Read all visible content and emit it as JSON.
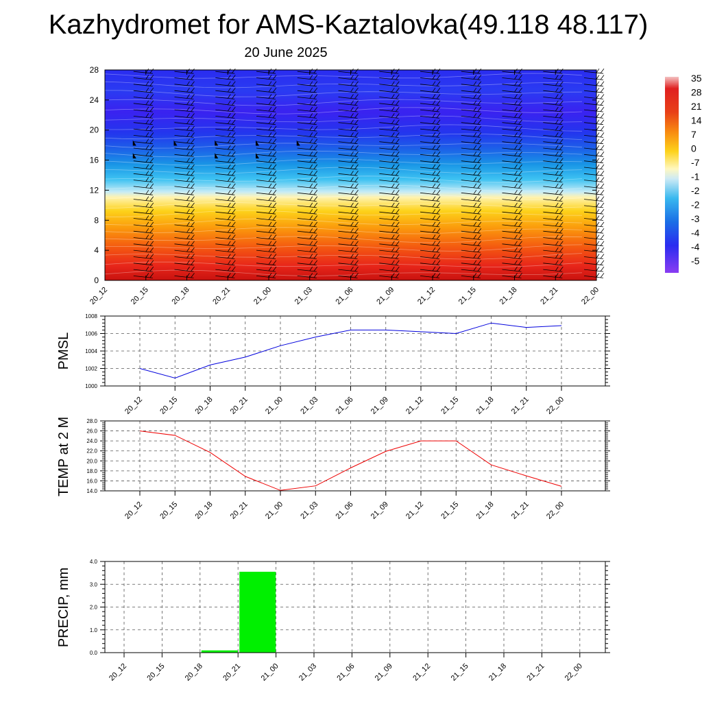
{
  "title": "Kazhydromet for AMS-Kaztalovka(49.118 48.117)",
  "subtitle": "20 June 2025",
  "chart_data": [
    {
      "type": "heatmap",
      "description_of_fill": "temperature cross-section with wind barbs",
      "x_tick_labels": [
        "20_12",
        "20_15",
        "20_18",
        "20_21",
        "21_00",
        "21_03",
        "21_06",
        "21_09",
        "21_12",
        "21_15",
        "21_18",
        "21_21",
        "22_00"
      ],
      "y_tick_labels": [
        "0",
        "4",
        "8",
        "12",
        "16",
        "20",
        "24",
        "28"
      ],
      "ylim": [
        0,
        28
      ],
      "colorbar_labels": [
        "35",
        "28",
        "21",
        "14",
        "7",
        "0",
        "-7",
        "-1",
        "-2",
        "-2",
        "-3",
        "-4",
        "-4",
        "-5"
      ]
    },
    {
      "type": "line",
      "ylabel": "PMSL",
      "x_tick_labels": [
        "20_12",
        "20_15",
        "20_18",
        "20_21",
        "21_00",
        "21_03",
        "21_06",
        "21_09",
        "21_12",
        "21_15",
        "21_18",
        "21_21",
        "22_00"
      ],
      "y_tick_labels": [
        "1000",
        "1002",
        "1004",
        "1006",
        "1008"
      ],
      "ylim": [
        1000,
        1008
      ],
      "series": [
        {
          "color": "#0000dd",
          "values": [
            1002.0,
            1000.9,
            1002.4,
            1003.3,
            1004.6,
            1005.6,
            1006.4,
            1006.4,
            1006.2,
            1006.0,
            1007.2,
            1006.7,
            1006.9
          ]
        }
      ],
      "grid": "dashed"
    },
    {
      "type": "line",
      "ylabel": "TEMP at 2 M",
      "x_tick_labels": [
        "20_12",
        "20_15",
        "20_18",
        "20_21",
        "21_00",
        "21_03",
        "21_06",
        "21_09",
        "21_12",
        "21_15",
        "21_18",
        "21_21",
        "22_00"
      ],
      "y_tick_labels": [
        "14.0",
        "16.0",
        "18.0",
        "20.0",
        "22.0",
        "24.0",
        "26.0",
        "28.0"
      ],
      "ylim": [
        14,
        28
      ],
      "series": [
        {
          "color": "#ee0000",
          "values": [
            26.0,
            25.1,
            21.7,
            16.9,
            14.1,
            15.0,
            18.6,
            21.9,
            24.0,
            24.0,
            19.2,
            17.0,
            14.9
          ]
        }
      ],
      "grid": "dashed"
    },
    {
      "type": "bar",
      "ylabel": "PRECIP, mm",
      "x_tick_labels": [
        "20_12",
        "20_15",
        "20_18",
        "20_21",
        "21_00",
        "21_03",
        "21_06",
        "21_09",
        "21_12",
        "21_15",
        "21_18",
        "21_21",
        "22_00"
      ],
      "y_tick_labels": [
        "0.0",
        "1.0",
        "2.0",
        "3.0",
        "4.0"
      ],
      "ylim": [
        0,
        4
      ],
      "bars": [
        {
          "slot": 2,
          "value": 0.1
        },
        {
          "slot": 3,
          "value": 3.55
        }
      ],
      "bar_color": "#00f000",
      "grid": "dashed"
    }
  ]
}
